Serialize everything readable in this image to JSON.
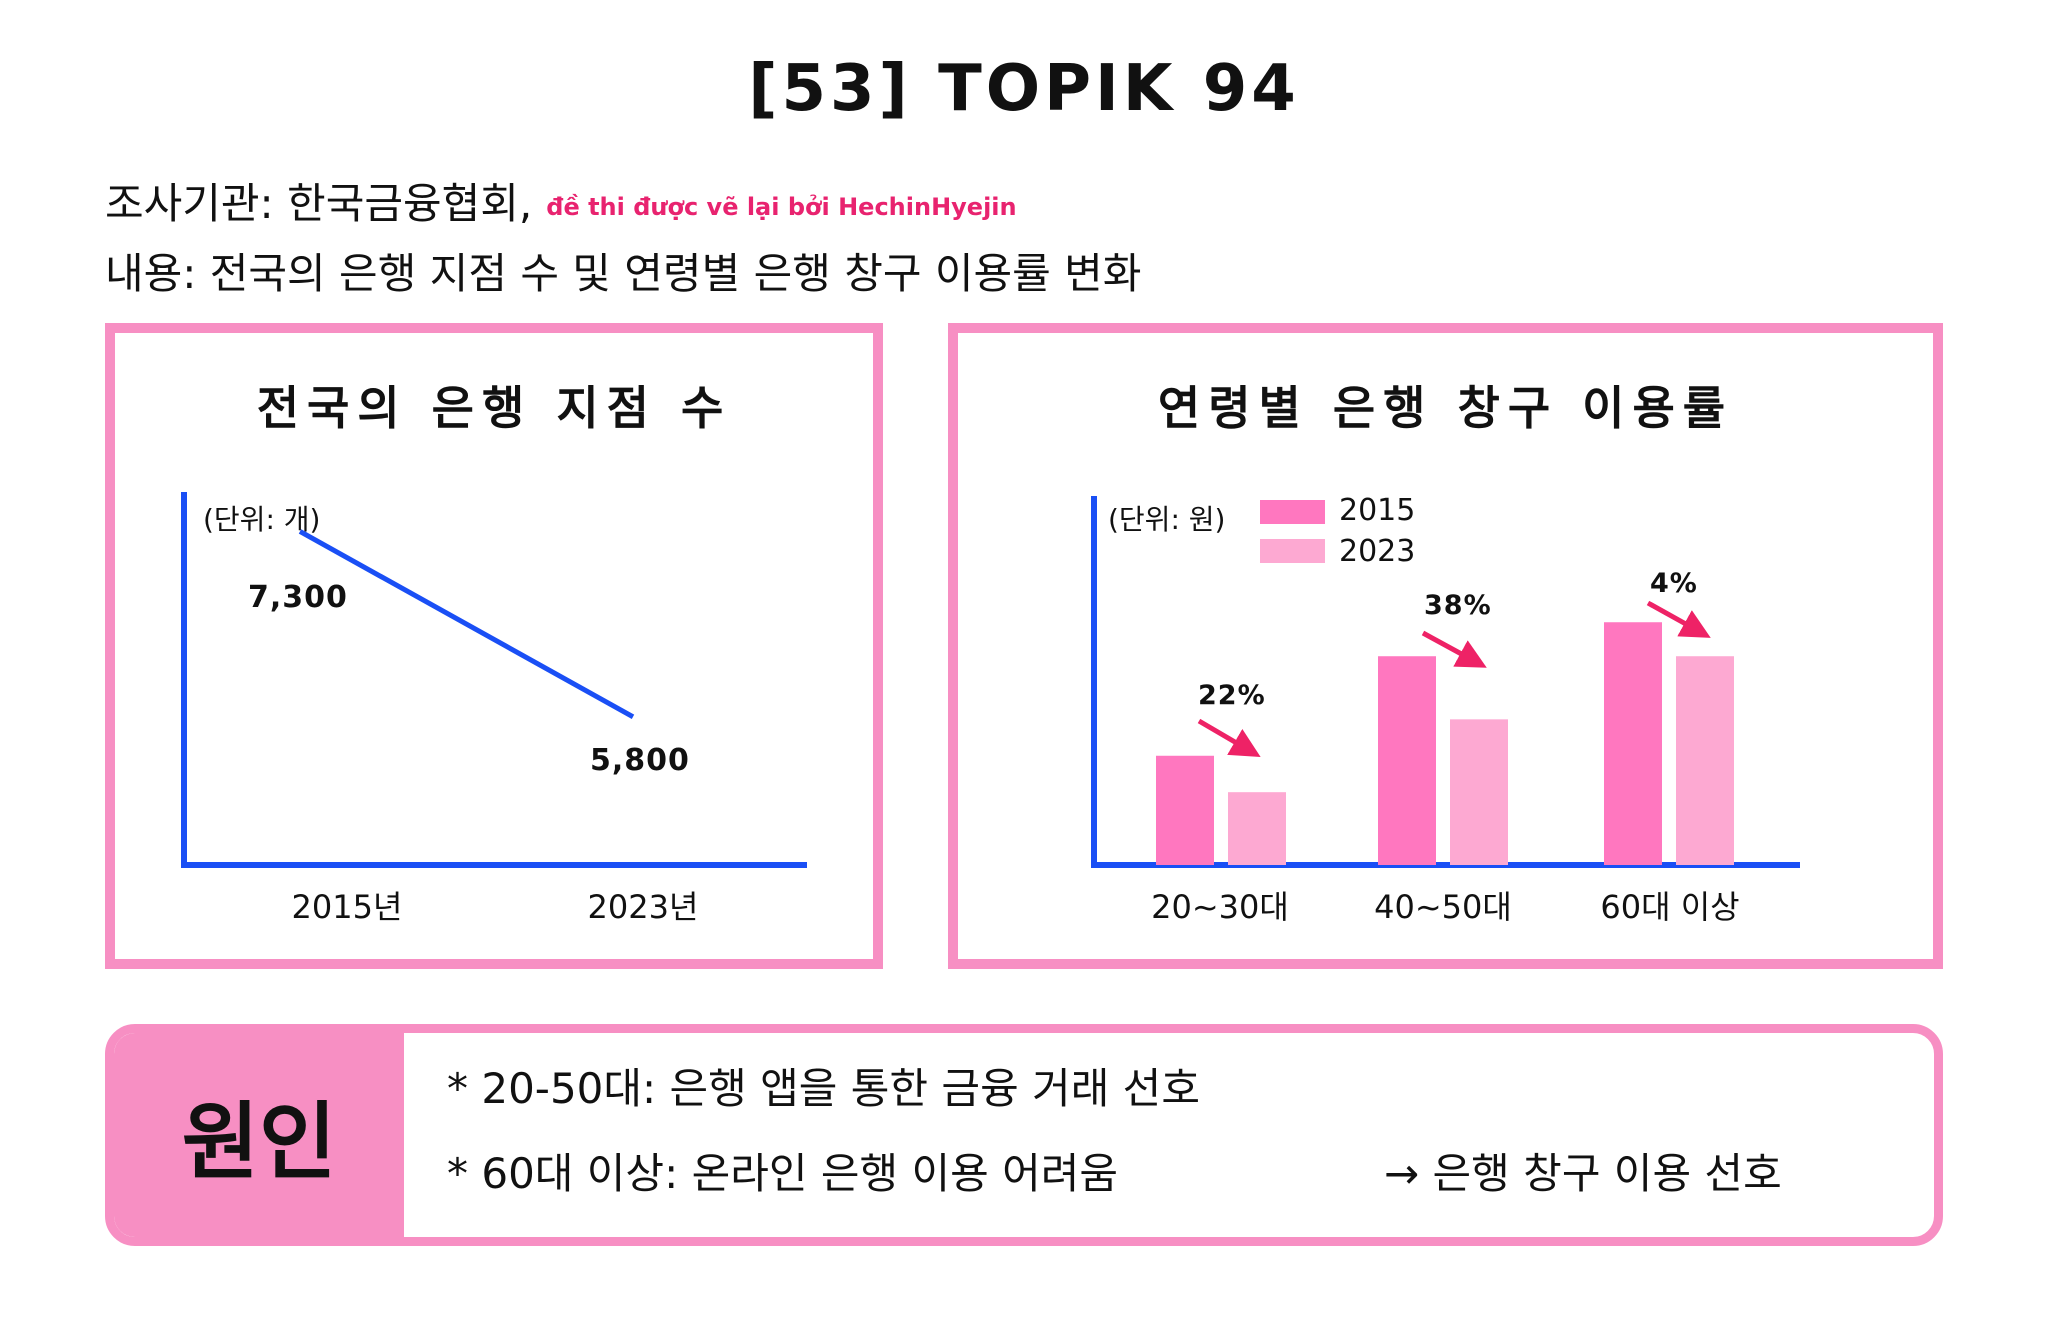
{
  "header": {
    "title": "[53] TOPIK 94",
    "source_line": "조사기관: 한국금융협회,",
    "credit": "đề thi được vẽ lại bởi HechinHyejin",
    "content_line": "내용: 전국의 은행 지점 수 및 연령별 은행 창구 이용률 변화"
  },
  "watermark": "https://hechinhyejin.com/",
  "colors": {
    "frame": "#f78fc3",
    "axis": "#1a4ff5",
    "line": "#1a4ff5",
    "bar2015": "#ff77bf",
    "bar2023": "#fda9d2",
    "arrow": "#ee2266"
  },
  "chart_data": [
    {
      "type": "line",
      "title": "전국의 은행 지점 수",
      "unit_label": "(단위: 개)",
      "categories": [
        "2015년",
        "2023년"
      ],
      "values": [
        7300,
        5800
      ],
      "value_labels": [
        "7,300",
        "5,800"
      ]
    },
    {
      "type": "bar",
      "title": "연령별 은행 창구 이용률",
      "unit_label": "(단위: 원)",
      "categories": [
        "20~30대",
        "40~50대",
        "60대 이상"
      ],
      "series": [
        {
          "name": "2015",
          "values": [
            45,
            86,
            100
          ]
        },
        {
          "name": "2023",
          "values": [
            30,
            60,
            86
          ]
        }
      ],
      "ylim": [
        0,
        152
      ],
      "annotations": [
        "22%",
        "38%",
        "4%"
      ]
    }
  ],
  "cause": {
    "label": "원인",
    "bullets": [
      "* 20-50대: 은행 앱을 통한 금융 거래 선호",
      "* 60대 이상: 온라인 은행 이용 어려움"
    ],
    "result": "→ 은행 창구 이용 선호"
  }
}
